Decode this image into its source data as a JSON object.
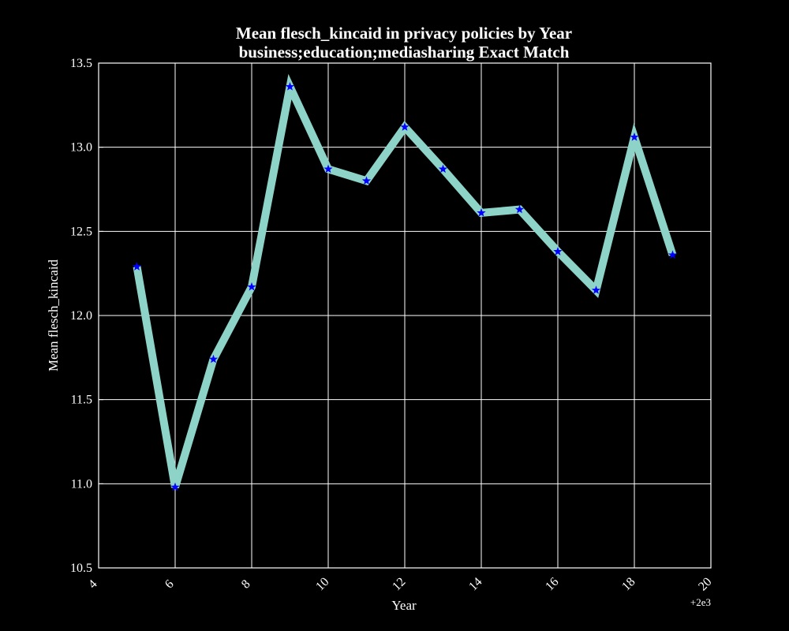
{
  "chart_data": {
    "type": "line",
    "title": "Mean flesch_kincaid in privacy policies by Year",
    "subtitle": "business;education;mediasharing Exact Match",
    "xlabel": "Year",
    "ylabel": "Mean flesch_kincaid",
    "x_offset_label": "+2e3",
    "xlim": [
      2004,
      2020
    ],
    "ylim": [
      10.5,
      13.5
    ],
    "x_ticks": [
      2004,
      2006,
      2008,
      2010,
      2012,
      2014,
      2016,
      2018,
      2020
    ],
    "x_tick_labels": [
      "4",
      "6",
      "8",
      "10",
      "12",
      "14",
      "16",
      "18",
      "20"
    ],
    "y_ticks": [
      10.5,
      11.0,
      11.5,
      12.0,
      12.5,
      13.0,
      13.5
    ],
    "y_tick_labels": [
      "10.5",
      "11.0",
      "11.5",
      "12.0",
      "12.5",
      "13.0",
      "13.5"
    ],
    "grid": true,
    "series": [
      {
        "x": [
          2005,
          2006,
          2007,
          2008,
          2009,
          2010,
          2011,
          2012,
          2013,
          2014,
          2015,
          2016,
          2017,
          2018,
          2019
        ],
        "values": [
          12.29,
          10.98,
          11.74,
          12.17,
          13.36,
          12.87,
          12.8,
          13.12,
          12.87,
          12.61,
          12.63,
          12.38,
          12.15,
          13.06,
          12.36
        ],
        "color": "#8dd3c7",
        "marker_color": "#0000ff"
      }
    ],
    "colors": {
      "background": "#000000",
      "foreground": "#ffffff",
      "grid": "#ffffff"
    }
  }
}
